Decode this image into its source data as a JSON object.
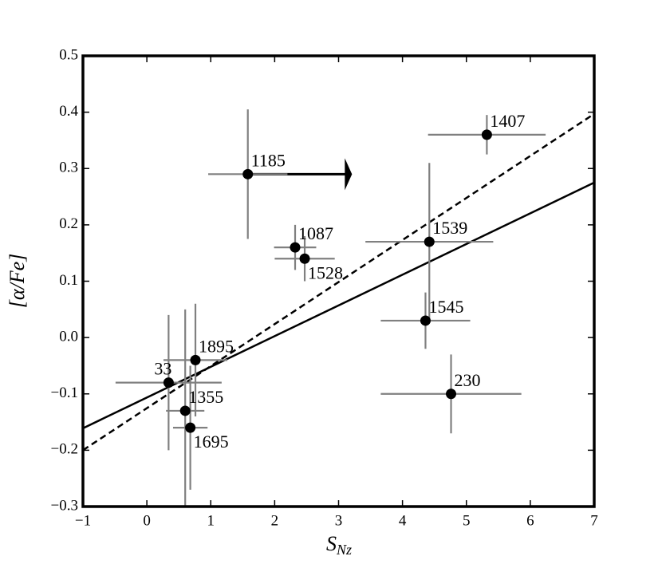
{
  "chart_data": {
    "type": "scatter",
    "xlabel": {
      "main": "S",
      "sub": "Nz"
    },
    "ylabel": "[α/Fe]",
    "xlim": [
      -1,
      7
    ],
    "ylim": [
      -0.3,
      0.5
    ],
    "xticks": [
      {
        "value": -1,
        "label": "−1"
      },
      0,
      1,
      2,
      3,
      4,
      5,
      6,
      7
    ],
    "yticks": [
      {
        "value": -0.3,
        "label": "−0.3"
      },
      {
        "value": -0.2,
        "label": "−0.2"
      },
      {
        "value": -0.1,
        "label": "−0.1"
      },
      {
        "value": 0,
        "label": "0.0"
      },
      0.1,
      0.2,
      0.3,
      0.4,
      0.5
    ],
    "point_color": "#000000",
    "error_color": "#808080",
    "points": {
      "labels": [
        "1185",
        "1407",
        "1087",
        "1528",
        "1539",
        "1545",
        "230",
        "1895",
        "33",
        "1355",
        "1695"
      ],
      "x": [
        1.58,
        5.32,
        2.32,
        2.47,
        4.42,
        4.36,
        4.76,
        0.76,
        0.34,
        0.6,
        0.68
      ],
      "y": [
        0.29,
        0.36,
        0.16,
        0.14,
        0.17,
        0.03,
        -0.1,
        -0.04,
        -0.08,
        -0.13,
        -0.16
      ],
      "xerr": [
        0.62,
        0.92,
        0.33,
        0.47,
        1.0,
        0.7,
        1.1,
        0.5,
        0.83,
        0.3,
        0.27
      ],
      "yerr": [
        0.115,
        0.035,
        0.04,
        0.04,
        0.14,
        0.05,
        0.07,
        0.1,
        0.12,
        0.18,
        0.11
      ]
    },
    "lines": [
      {
        "style": "solid",
        "x": [
          -1,
          7
        ],
        "y": [
          -0.161,
          0.275
        ]
      },
      {
        "style": "dashed",
        "x": [
          -1,
          7
        ],
        "y": [
          -0.2,
          0.397
        ]
      }
    ],
    "arrow": {
      "x": [
        1.58,
        3.21
      ],
      "y": 0.29
    }
  }
}
